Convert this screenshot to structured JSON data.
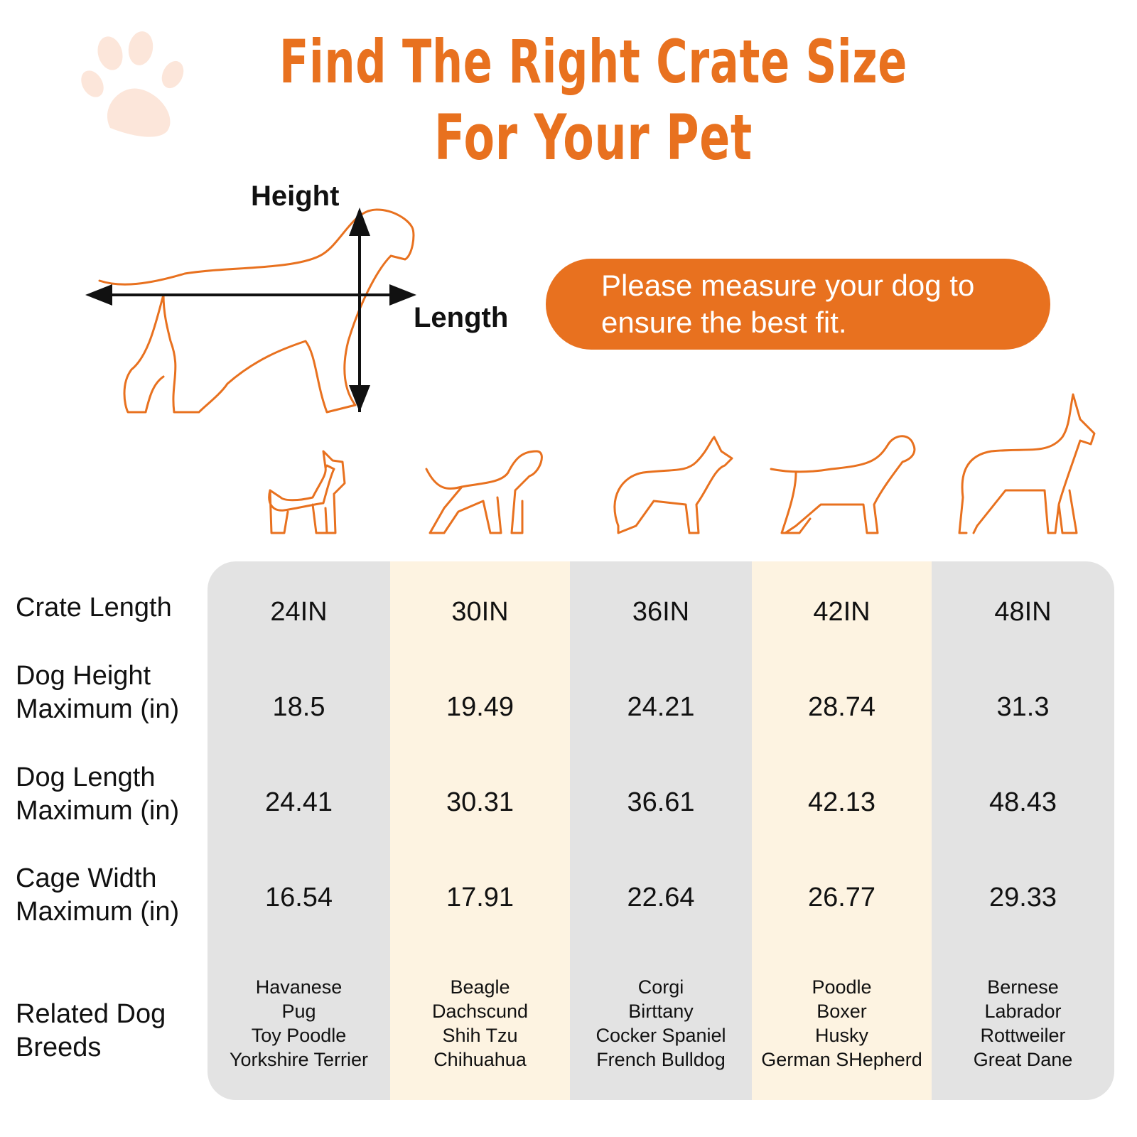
{
  "title": {
    "line1": "Find The Right Crate Size",
    "line2": "For Your Pet"
  },
  "diagram": {
    "height_label": "Height",
    "length_label": "Length"
  },
  "notice": "Please measure your dog to ensure the best fit.",
  "colors": {
    "accent": "#E8711F",
    "column_gray": "#E3E3E3",
    "column_cream": "#FDF3E1"
  },
  "row_labels": {
    "crate_length": "Crate Length",
    "dog_height": [
      "Dog Height",
      "Maximum (in)"
    ],
    "dog_length": [
      "Dog Length",
      "Maximum (in)"
    ],
    "cage_width": [
      "Cage Width",
      "Maximum (in)"
    ],
    "breeds": [
      "Related Dog",
      "Breeds"
    ]
  },
  "columns": [
    {
      "crate_length": "24IN",
      "dog_height": "18.5",
      "dog_length": "24.41",
      "cage_width": "16.54",
      "breeds": [
        "Havanese",
        "Pug",
        "Toy Poodle",
        "Yorkshire Terrier"
      ]
    },
    {
      "crate_length": "30IN",
      "dog_height": "19.49",
      "dog_length": "30.31",
      "cage_width": "17.91",
      "breeds": [
        "Beagle",
        "Dachscund",
        "Shih Tzu",
        "Chihuahua"
      ]
    },
    {
      "crate_length": "36IN",
      "dog_height": "24.21",
      "dog_length": "36.61",
      "cage_width": "22.64",
      "breeds": [
        "Corgi",
        "Birttany",
        "Cocker Spaniel",
        "French Bulldog"
      ]
    },
    {
      "crate_length": "42IN",
      "dog_height": "28.74",
      "dog_length": "42.13",
      "cage_width": "26.77",
      "breeds": [
        "Poodle",
        "Boxer",
        "Husky",
        "German SHepherd"
      ]
    },
    {
      "crate_length": "48IN",
      "dog_height": "31.3",
      "dog_length": "48.43",
      "cage_width": "29.33",
      "breeds": [
        "Bernese",
        "Labrador",
        "Rottweiler",
        "Great Dane"
      ]
    }
  ]
}
